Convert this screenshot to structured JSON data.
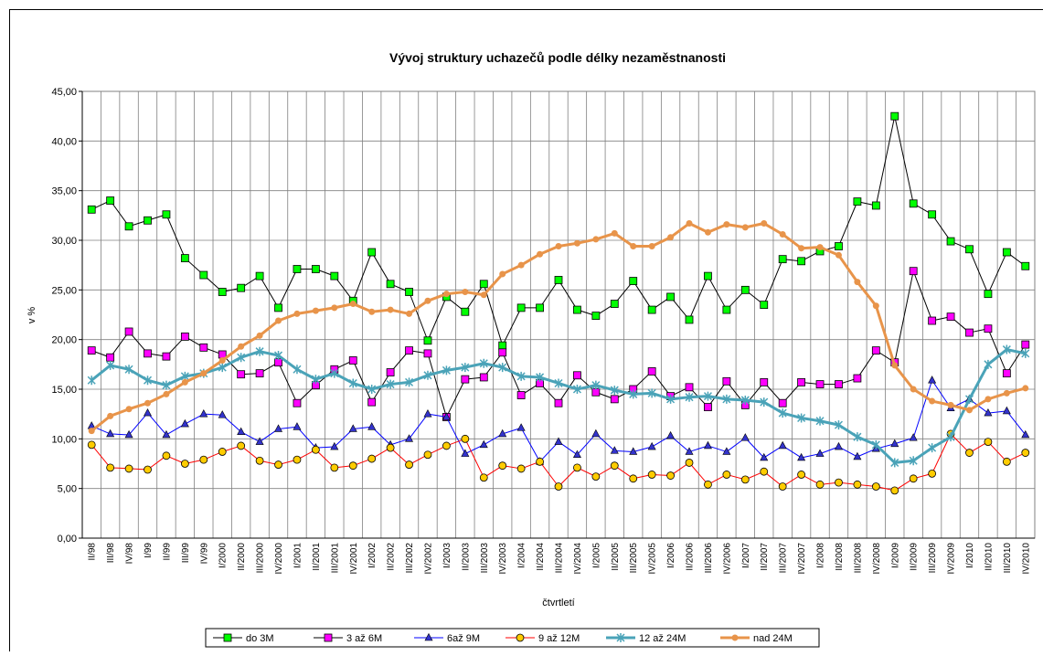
{
  "chart_data": {
    "type": "line",
    "title": "Vývoj struktury uchazečů podle délky nezaměstnanosti",
    "y_label": "v %",
    "x_label": "čtvrtletí",
    "categories": [
      "II/98",
      "III/98",
      "IV/98",
      "I/99",
      "II/99",
      "III/99",
      "IV/99",
      "I/2000",
      "II/2000",
      "III/2000",
      "IV/2000",
      "I/2001",
      "II/2001",
      "III/2001",
      "IV/2001",
      "I/2002",
      "II/2002",
      "III/2002",
      "IV/2002",
      "I/2003",
      "II/2003",
      "III/2003",
      "IV/2003",
      "I/2004",
      "II/2004",
      "III/2004",
      "IV/2004",
      "I/2005",
      "II/2005",
      "III/2005",
      "IV/2005",
      "I/2006",
      "II/2006",
      "III/2006",
      "IV/2006",
      "I/2007",
      "II/2007",
      "III/2007",
      "IV/2007",
      "I/2008",
      "II/2008",
      "III/2008",
      "IV/2008",
      "I/2009",
      "II/2009",
      "III/2009",
      "IV/2009",
      "I/2010",
      "II/2010",
      "III/2010",
      "IV/2010"
    ],
    "ylim": [
      0,
      45
    ],
    "yticks": [
      {
        "value": 0,
        "label": "0,00"
      },
      {
        "value": 5,
        "label": "5,00"
      },
      {
        "value": 10,
        "label": "10,00"
      },
      {
        "value": 15,
        "label": "15,00"
      },
      {
        "value": 20,
        "label": "20,00"
      },
      {
        "value": 25,
        "label": "25,00"
      },
      {
        "value": 30,
        "label": "30,00"
      },
      {
        "value": 35,
        "label": "35,00"
      },
      {
        "value": 40,
        "label": "40,00"
      },
      {
        "value": 45,
        "label": "45,00"
      }
    ],
    "grid": true,
    "legend": "bottom",
    "series": [
      {
        "name": "do 3M",
        "color": "#00ff00",
        "line_color": "#000000",
        "line_width": 1,
        "marker": "square",
        "values": [
          33.1,
          34.0,
          31.4,
          32.0,
          32.6,
          28.2,
          26.5,
          24.8,
          25.2,
          26.4,
          23.2,
          27.1,
          27.1,
          26.4,
          23.9,
          28.8,
          25.6,
          24.8,
          19.9,
          24.3,
          22.8,
          25.6,
          19.4,
          23.2,
          23.2,
          26.0,
          23.0,
          22.4,
          23.6,
          25.9,
          23.0,
          24.3,
          22.0,
          26.4,
          23.0,
          25.0,
          23.5,
          28.1,
          27.9,
          28.9,
          29.4,
          33.9,
          33.5,
          42.5,
          33.7,
          32.6,
          29.9,
          29.1,
          24.6,
          28.8,
          27.4
        ]
      },
      {
        "name": "3 až 6M",
        "color": "#ff00ff",
        "line_color": "#000000",
        "line_width": 1,
        "marker": "square",
        "values": [
          18.9,
          18.2,
          20.8,
          18.6,
          18.3,
          20.3,
          19.2,
          18.5,
          16.5,
          16.6,
          17.7,
          13.6,
          15.4,
          17.0,
          17.9,
          13.7,
          16.7,
          18.9,
          18.6,
          12.2,
          16.0,
          16.2,
          18.7,
          14.4,
          15.6,
          13.6,
          16.4,
          14.7,
          14.0,
          15.0,
          16.8,
          14.3,
          15.2,
          13.2,
          15.8,
          13.4,
          15.7,
          13.6,
          15.7,
          15.5,
          15.5,
          16.1,
          18.9,
          17.7,
          26.9,
          21.9,
          22.3,
          20.7,
          21.1,
          16.6,
          19.5
        ]
      },
      {
        "name": "6až 9M",
        "color": "#3333cc",
        "line_color": "#0000ff",
        "line_width": 1,
        "marker": "triangle",
        "values": [
          11.3,
          10.5,
          10.4,
          12.6,
          10.4,
          11.5,
          12.5,
          12.4,
          10.7,
          9.7,
          11.0,
          11.2,
          9.1,
          9.2,
          11.0,
          11.2,
          9.4,
          10.0,
          12.5,
          12.2,
          8.5,
          9.4,
          10.5,
          11.1,
          7.7,
          9.7,
          8.4,
          10.5,
          8.8,
          8.7,
          9.2,
          10.3,
          8.7,
          9.3,
          8.7,
          10.1,
          8.1,
          9.3,
          8.1,
          8.5,
          9.2,
          8.2,
          9.0,
          9.5,
          10.1,
          15.9,
          13.1,
          14.0,
          12.6,
          12.8,
          10.4
        ]
      },
      {
        "name": "9 až 12M",
        "color": "#ffcc00",
        "line_color": "#ff0000",
        "line_width": 1,
        "marker": "circle",
        "values": [
          9.4,
          7.1,
          7.0,
          6.9,
          8.3,
          7.5,
          7.9,
          8.7,
          9.3,
          7.8,
          7.4,
          7.9,
          8.9,
          7.1,
          7.3,
          8.0,
          9.1,
          7.4,
          8.4,
          9.3,
          10.0,
          6.1,
          7.3,
          7.0,
          7.7,
          5.2,
          7.1,
          6.2,
          7.3,
          6.0,
          6.4,
          6.3,
          7.6,
          5.4,
          6.4,
          5.9,
          6.7,
          5.2,
          6.4,
          5.4,
          5.6,
          5.4,
          5.2,
          4.8,
          6.0,
          6.5,
          10.5,
          8.6,
          9.7,
          7.7,
          8.6
        ]
      },
      {
        "name": "12 až 24M",
        "color": "#4aa3b8",
        "line_color": "#4aa3b8",
        "line_width": 3,
        "marker": "star",
        "values": [
          15.9,
          17.4,
          17.0,
          15.9,
          15.4,
          16.3,
          16.6,
          17.2,
          18.2,
          18.8,
          18.4,
          17.0,
          16.0,
          16.6,
          15.6,
          15.0,
          15.5,
          15.7,
          16.4,
          16.9,
          17.2,
          17.6,
          17.2,
          16.3,
          16.2,
          15.6,
          15.0,
          15.4,
          14.9,
          14.5,
          14.6,
          14.0,
          14.2,
          14.3,
          14.0,
          13.9,
          13.7,
          12.6,
          12.1,
          11.8,
          11.4,
          10.2,
          9.4,
          7.6,
          7.8,
          9.1,
          10.2,
          14.0,
          17.5,
          19.0,
          18.6
        ]
      },
      {
        "name": "nad 24M",
        "color": "#e8944a",
        "line_color": "#e8944a",
        "line_width": 3,
        "marker": "dot",
        "values": [
          10.8,
          12.3,
          13.0,
          13.6,
          14.5,
          15.7,
          16.6,
          17.9,
          19.3,
          20.4,
          21.9,
          22.6,
          22.9,
          23.2,
          23.6,
          22.8,
          23.0,
          22.6,
          23.9,
          24.6,
          24.8,
          24.5,
          26.6,
          27.5,
          28.6,
          29.4,
          29.7,
          30.1,
          30.7,
          29.4,
          29.4,
          30.3,
          31.7,
          30.8,
          31.6,
          31.3,
          31.7,
          30.6,
          29.2,
          29.3,
          28.5,
          25.8,
          23.4,
          17.4,
          15.0,
          13.8,
          13.4,
          12.9,
          14.0,
          14.6,
          15.1
        ]
      }
    ]
  }
}
